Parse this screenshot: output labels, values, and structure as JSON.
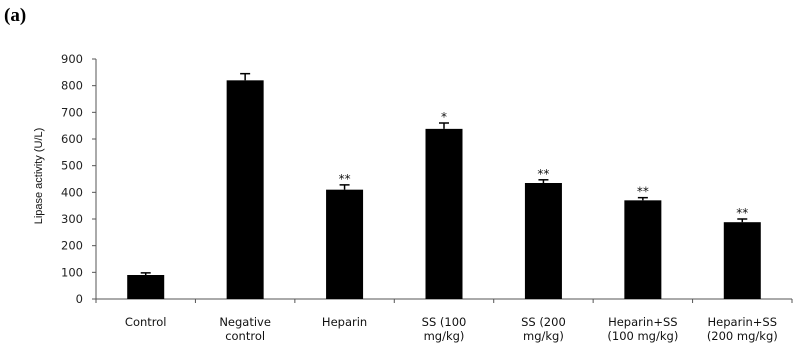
{
  "panel_label": "(a)",
  "chart_data": {
    "type": "bar",
    "title": "",
    "xlabel": "",
    "ylabel": "Lipase activity (U/L)",
    "ylim": [
      0,
      900
    ],
    "yticks": [
      0,
      100,
      200,
      300,
      400,
      500,
      600,
      700,
      800,
      900
    ],
    "grid": false,
    "bar_color": "#000000",
    "categories": [
      [
        "Control"
      ],
      [
        "Negative",
        "control"
      ],
      [
        "Heparin"
      ],
      [
        "SS (100",
        "mg/kg)"
      ],
      [
        "SS (200",
        "mg/kg)"
      ],
      [
        "Heparin+SS",
        "(100 mg/kg)"
      ],
      [
        "Heparin+SS",
        "(200 mg/kg)"
      ]
    ],
    "values": [
      90,
      820,
      410,
      638,
      435,
      370,
      288
    ],
    "errors": [
      8,
      25,
      18,
      22,
      12,
      10,
      12
    ],
    "significance": [
      "",
      "",
      "**",
      "*",
      "**",
      "**",
      "**"
    ]
  }
}
